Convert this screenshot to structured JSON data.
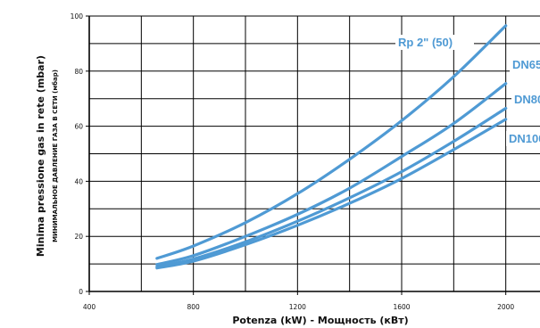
{
  "chart_data": {
    "type": "line",
    "xlabel": "Potenza (kW) -  Мощность  (кВт)",
    "ylabel": "Minima pressione gas in rete  (mbar)",
    "ylabel_secondary": "МИНИМАЛЬНОЕ ДАВЛЕНИЕ ГАЗА В СЕТИ (мбар)",
    "xlim": [
      400,
      2200
    ],
    "ylim": [
      0,
      100
    ],
    "x_ticks": [
      400,
      800,
      1200,
      1600,
      2000
    ],
    "y_ticks": [
      0,
      20,
      40,
      60,
      80,
      100
    ],
    "grid": true,
    "colors": {
      "series": "#4f9ad4",
      "grid": "#000000",
      "background": "#ffffff"
    },
    "series": [
      {
        "name": "Rp 2\" (50)",
        "x": [
          660,
          800,
          1000,
          1200,
          1400,
          1600,
          1800,
          2000
        ],
        "values": [
          12,
          16.5,
          25,
          35.5,
          48,
          62,
          78,
          96.5
        ]
      },
      {
        "name": "DN65",
        "x": [
          660,
          800,
          1000,
          1200,
          1400,
          1600,
          1800,
          2000
        ],
        "values": [
          9.8,
          13,
          20,
          28,
          37.5,
          49,
          61,
          75.5
        ]
      },
      {
        "name": "DN80",
        "x": [
          660,
          800,
          1000,
          1200,
          1400,
          1600,
          1800,
          2000
        ],
        "values": [
          9,
          11.8,
          18,
          25.5,
          34,
          43.5,
          54.5,
          66.5
        ]
      },
      {
        "name": "DN100",
        "x": [
          660,
          800,
          1000,
          1200,
          1400,
          1600,
          1800,
          2000
        ],
        "values": [
          8.5,
          11,
          17,
          24,
          32,
          41,
          51.5,
          62.5
        ]
      }
    ]
  }
}
